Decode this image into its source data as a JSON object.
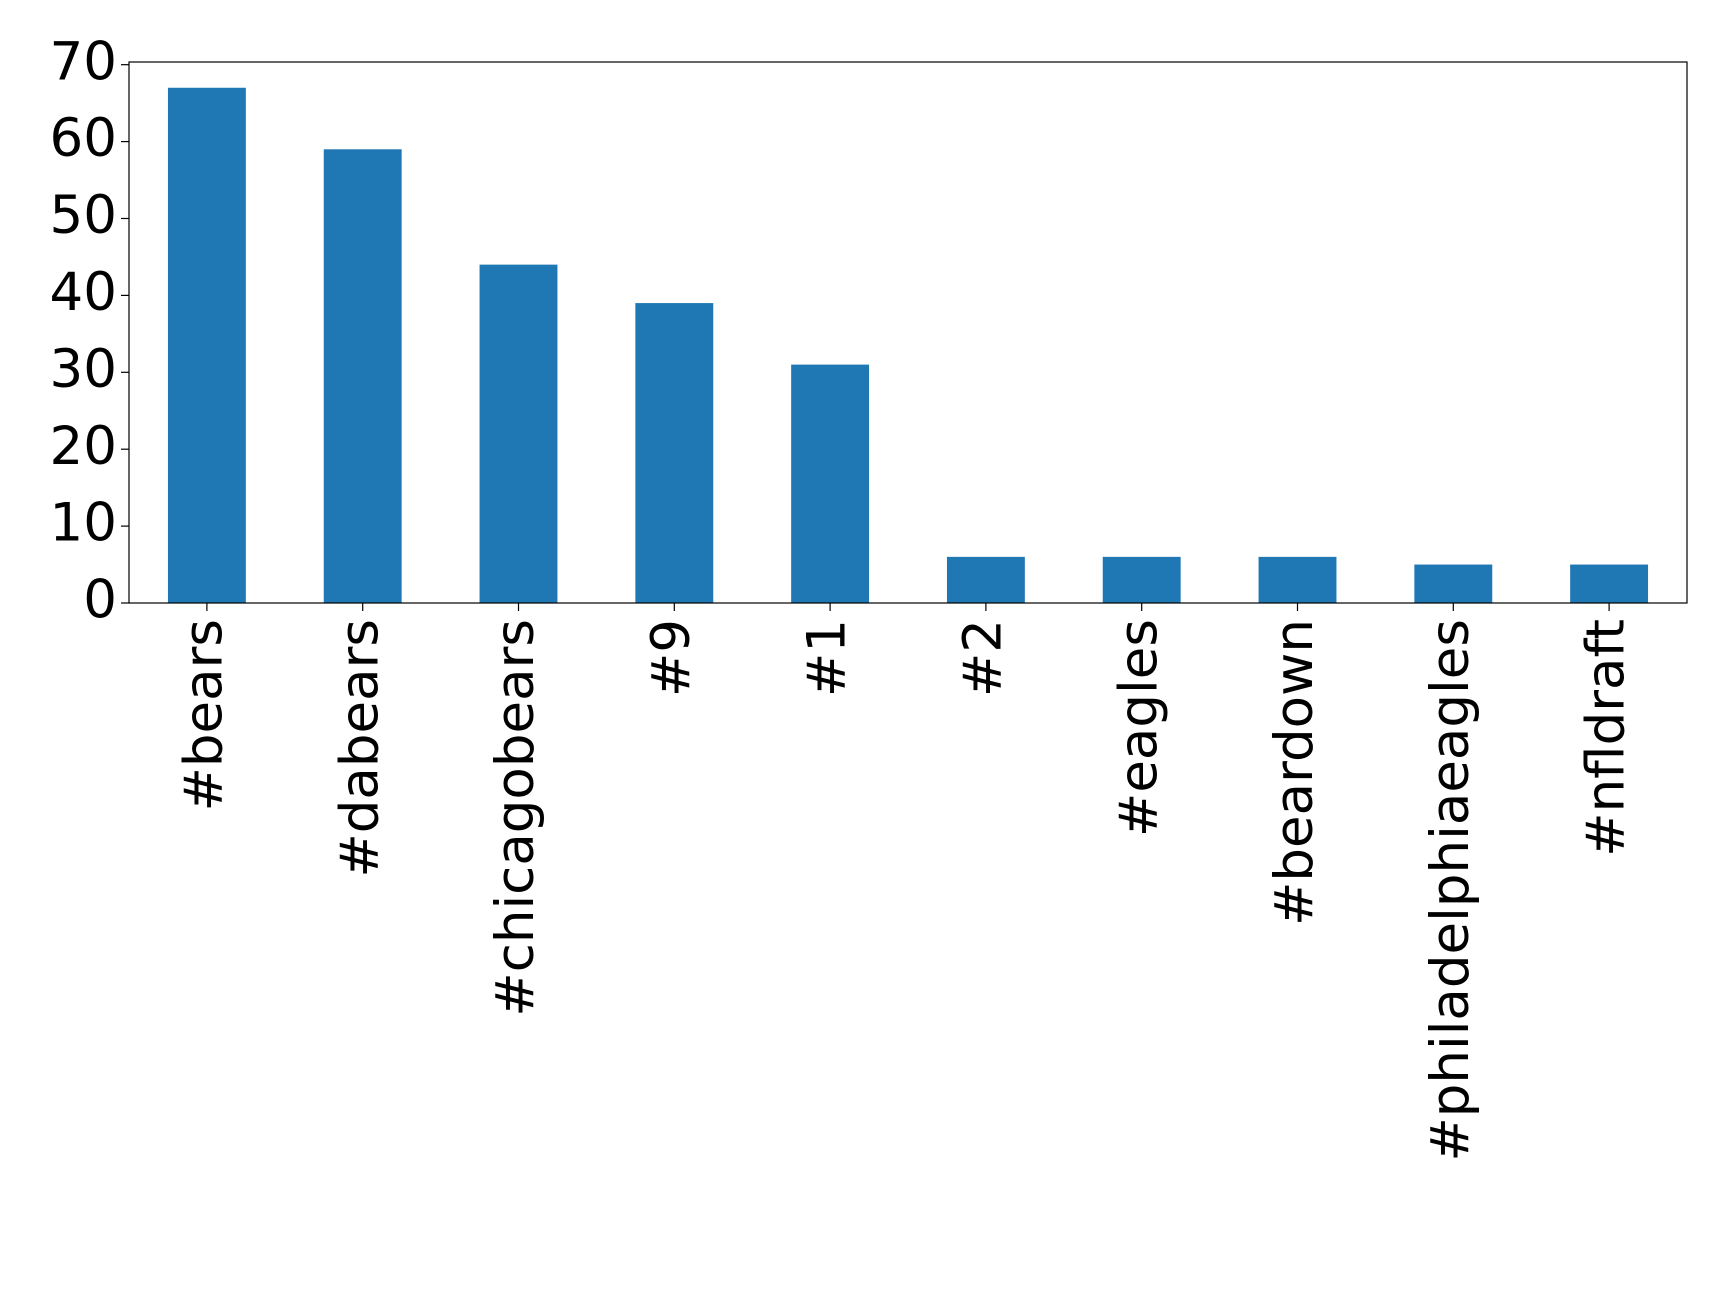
{
  "chart_data": {
    "type": "bar",
    "categories": [
      "#bears",
      "#dabears",
      "#chicagobears",
      "#9",
      "#1",
      "#2",
      "#eagles",
      "#beardown",
      "#philadelphiaeagles",
      "#nfldraft"
    ],
    "values": [
      67,
      59,
      44,
      39,
      31,
      6,
      6,
      6,
      5,
      5
    ],
    "color": "#1f77b4",
    "ylim": [
      0,
      70.35
    ],
    "yticks": [
      0,
      10,
      20,
      30,
      40,
      50,
      60,
      70
    ],
    "grid": false
  }
}
